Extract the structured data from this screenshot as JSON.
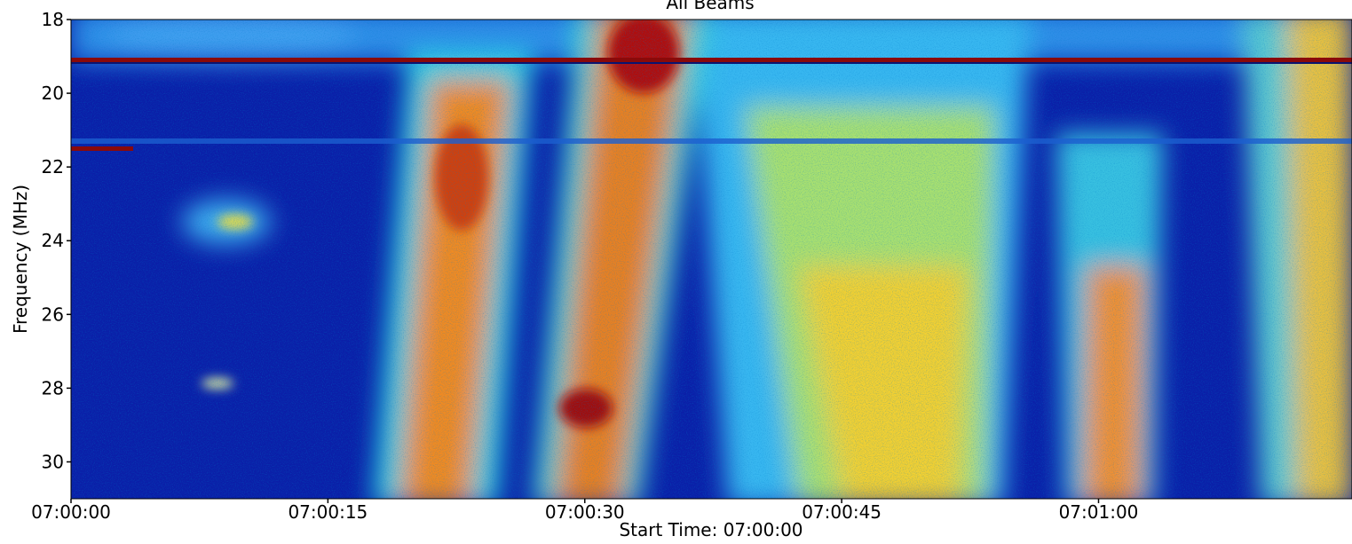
{
  "chart_data": {
    "type": "spectrogram",
    "title": "All Beams",
    "xlabel": "Start Time: 07:00:00",
    "ylabel": "Frequency (MHz)",
    "xlim": [
      0,
      74.8
    ],
    "xticks": [
      {
        "value": 0,
        "label": "07:00:00"
      },
      {
        "value": 15,
        "label": "07:00:15"
      },
      {
        "value": 30,
        "label": "07:00:30"
      },
      {
        "value": 45,
        "label": "07:00:45"
      },
      {
        "value": 60,
        "label": "07:01:00"
      }
    ],
    "ylim": [
      31,
      18
    ],
    "yticks": [
      18,
      20,
      22,
      24,
      26,
      28,
      30
    ]
  }
}
